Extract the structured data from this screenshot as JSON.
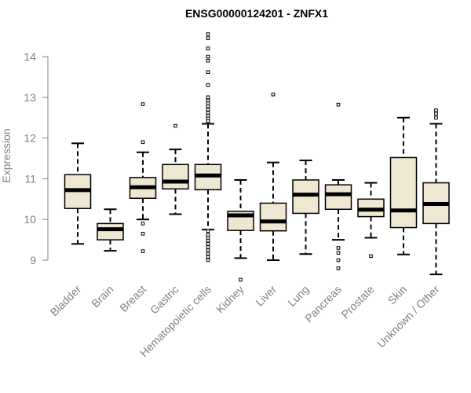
{
  "chart_data": {
    "type": "boxplot",
    "title": "ENSG00000124201 - ZNFX1",
    "xlabel": "",
    "ylabel": "Expression",
    "ylim": [
      8.3,
      14.7
    ],
    "yticks": [
      9,
      10,
      11,
      12,
      13,
      14
    ],
    "colors": {
      "box_fill": "#EEE8D2",
      "stroke": "#000000",
      "axis": "#808080"
    },
    "categories": [
      "Bladder",
      "Brain",
      "Breast",
      "Gastric",
      "Hematopoietic cells",
      "Kidney",
      "Liver",
      "Lung",
      "Pancreas",
      "Prostate",
      "Skin",
      "Unknown / Other"
    ],
    "boxes": [
      {
        "category": "Bladder",
        "min": 9.4,
        "q1": 10.27,
        "median": 10.72,
        "q3": 11.1,
        "max": 11.87,
        "outliers": []
      },
      {
        "category": "Brain",
        "min": 9.23,
        "q1": 9.5,
        "median": 9.76,
        "q3": 9.9,
        "max": 10.25,
        "outliers": []
      },
      {
        "category": "Breast",
        "min": 10.0,
        "q1": 10.52,
        "median": 10.79,
        "q3": 11.03,
        "max": 11.65,
        "outliers": [
          12.83,
          11.9,
          9.9,
          9.65,
          9.22
        ]
      },
      {
        "category": "Gastric",
        "min": 10.13,
        "q1": 10.75,
        "median": 10.93,
        "q3": 11.35,
        "max": 11.72,
        "outliers": [
          12.3
        ]
      },
      {
        "category": "Hematopoietic cells",
        "min": 9.75,
        "q1": 10.73,
        "median": 11.08,
        "q3": 11.35,
        "max": 12.35,
        "outliers": [
          14.55,
          14.45,
          14.2,
          14.0,
          13.9,
          13.62,
          13.3,
          13.0,
          12.92,
          12.85,
          12.78,
          12.7,
          12.62,
          12.55,
          12.48,
          12.42,
          9.72,
          9.62,
          9.55,
          9.48,
          9.4,
          9.32,
          9.24,
          9.16,
          9.08,
          9.0
        ]
      },
      {
        "category": "Kidney",
        "min": 9.05,
        "q1": 9.73,
        "median": 10.1,
        "q3": 10.2,
        "max": 10.97,
        "outliers": [
          8.52
        ]
      },
      {
        "category": "Liver",
        "min": 9.0,
        "q1": 9.72,
        "median": 9.95,
        "q3": 10.4,
        "max": 11.4,
        "outliers": [
          13.07
        ]
      },
      {
        "category": "Lung",
        "min": 9.15,
        "q1": 10.15,
        "median": 10.61,
        "q3": 10.97,
        "max": 11.45,
        "outliers": []
      },
      {
        "category": "Pancreas",
        "min": 9.5,
        "q1": 10.25,
        "median": 10.62,
        "q3": 10.85,
        "max": 10.97,
        "outliers": [
          12.82,
          9.3,
          9.18,
          9.0,
          8.8
        ]
      },
      {
        "category": "Prostate",
        "min": 9.55,
        "q1": 10.07,
        "median": 10.24,
        "q3": 10.5,
        "max": 10.9,
        "outliers": [
          9.1
        ]
      },
      {
        "category": "Skin",
        "min": 9.14,
        "q1": 9.8,
        "median": 10.22,
        "q3": 11.52,
        "max": 12.5,
        "outliers": []
      },
      {
        "category": "Unknown / Other",
        "min": 8.65,
        "q1": 9.9,
        "median": 10.38,
        "q3": 10.9,
        "max": 12.35,
        "outliers": [
          12.68,
          12.6,
          12.5
        ]
      }
    ]
  }
}
